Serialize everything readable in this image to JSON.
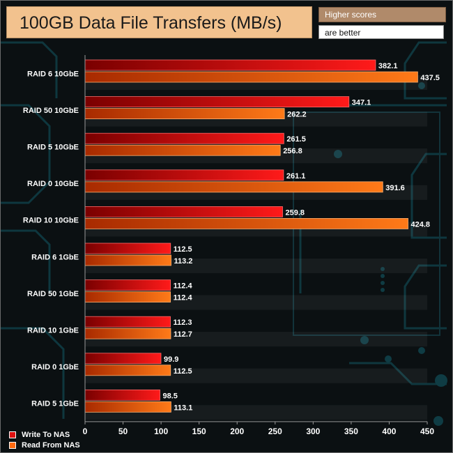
{
  "header": {
    "title": "100GB Data File Transfers (MB/s)",
    "note_top": "Higher scores",
    "note_bottom": "are better"
  },
  "chart_data": {
    "type": "bar",
    "orientation": "horizontal",
    "title": "100GB Data File Transfers (MB/s)",
    "categories": [
      "RAID 6 10GbE",
      "RAID 50 10GbE",
      "RAID 5 10GbE",
      "RAID 0 10GbE",
      "RAID 10 10GbE",
      "RAID 6 1GbE",
      "RAID 50 1GbE",
      "RAID 10 1GbE",
      "RAID 0 1GbE",
      "RAID 5 1GbE"
    ],
    "series": [
      {
        "name": "Write To NAS",
        "color": "#dd1111",
        "values": [
          382.1,
          347.1,
          261.5,
          261.1,
          259.8,
          112.5,
          112.4,
          112.3,
          99.9,
          98.5
        ]
      },
      {
        "name": "Read From NAS",
        "color": "#ff6a10",
        "values": [
          437.5,
          262.2,
          256.8,
          391.6,
          424.8,
          113.2,
          112.4,
          112.7,
          112.5,
          113.1
        ]
      }
    ],
    "xlim": [
      0,
      450
    ],
    "xticks": [
      0,
      50,
      100,
      150,
      200,
      250,
      300,
      350,
      400,
      450
    ],
    "legend_position": "bottom-left",
    "grid": false
  }
}
